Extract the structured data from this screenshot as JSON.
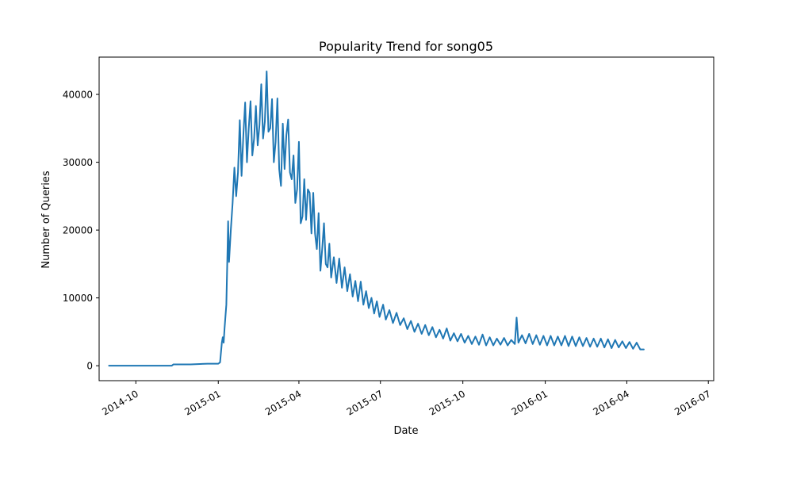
{
  "chart_data": {
    "type": "line",
    "title": "Popularity Trend for song05",
    "xlabel": "Date",
    "ylabel": "Number of Queries",
    "xlim": [
      "2014-08-21",
      "2016-07-07"
    ],
    "ylim": [
      -2200,
      45500
    ],
    "x_ticks": [
      "2014-10",
      "2015-01",
      "2015-04",
      "2015-07",
      "2015-10",
      "2016-01",
      "2016-04",
      "2016-07"
    ],
    "x_tick_dates": [
      "2014-10-01",
      "2015-01-01",
      "2015-04-01",
      "2015-07-01",
      "2015-10-01",
      "2016-01-01",
      "2016-04-01",
      "2016-07-01"
    ],
    "y_ticks": [
      0,
      10000,
      20000,
      30000,
      40000
    ],
    "grid": false,
    "series": [
      {
        "color": "#1f77b4",
        "points": [
          [
            "2014-09-01",
            0
          ],
          [
            "2014-10-01",
            0
          ],
          [
            "2014-11-10",
            0
          ],
          [
            "2014-11-12",
            200
          ],
          [
            "2014-12-01",
            200
          ],
          [
            "2014-12-20",
            300
          ],
          [
            "2015-01-01",
            300
          ],
          [
            "2015-01-03",
            500
          ],
          [
            "2015-01-05",
            3400
          ],
          [
            "2015-01-06",
            4200
          ],
          [
            "2015-01-07",
            3400
          ],
          [
            "2015-01-08",
            5500
          ],
          [
            "2015-01-10",
            9000
          ],
          [
            "2015-01-11",
            15000
          ],
          [
            "2015-01-12",
            21300
          ],
          [
            "2015-01-13",
            15300
          ],
          [
            "2015-01-15",
            20000
          ],
          [
            "2015-01-17",
            24000
          ],
          [
            "2015-01-19",
            29200
          ],
          [
            "2015-01-21",
            25000
          ],
          [
            "2015-01-23",
            28500
          ],
          [
            "2015-01-25",
            36200
          ],
          [
            "2015-01-27",
            28000
          ],
          [
            "2015-01-29",
            34000
          ],
          [
            "2015-01-31",
            38800
          ],
          [
            "2015-02-02",
            30000
          ],
          [
            "2015-02-04",
            35000
          ],
          [
            "2015-02-06",
            39000
          ],
          [
            "2015-02-08",
            31000
          ],
          [
            "2015-02-10",
            33500
          ],
          [
            "2015-02-12",
            38300
          ],
          [
            "2015-02-14",
            32500
          ],
          [
            "2015-02-16",
            35500
          ],
          [
            "2015-02-18",
            41500
          ],
          [
            "2015-02-20",
            33500
          ],
          [
            "2015-02-22",
            36000
          ],
          [
            "2015-02-24",
            43400
          ],
          [
            "2015-02-26",
            34500
          ],
          [
            "2015-02-28",
            35000
          ],
          [
            "2015-03-02",
            39300
          ],
          [
            "2015-03-04",
            30000
          ],
          [
            "2015-03-06",
            33000
          ],
          [
            "2015-03-08",
            39400
          ],
          [
            "2015-03-10",
            29000
          ],
          [
            "2015-03-12",
            26500
          ],
          [
            "2015-03-14",
            35700
          ],
          [
            "2015-03-16",
            29000
          ],
          [
            "2015-03-18",
            34000
          ],
          [
            "2015-03-20",
            36300
          ],
          [
            "2015-03-22",
            28500
          ],
          [
            "2015-03-24",
            27500
          ],
          [
            "2015-03-26",
            31000
          ],
          [
            "2015-03-28",
            24000
          ],
          [
            "2015-03-30",
            26000
          ],
          [
            "2015-04-01",
            33000
          ],
          [
            "2015-04-03",
            21000
          ],
          [
            "2015-04-05",
            22000
          ],
          [
            "2015-04-07",
            27500
          ],
          [
            "2015-04-09",
            21500
          ],
          [
            "2015-04-11",
            26000
          ],
          [
            "2015-04-13",
            25500
          ],
          [
            "2015-04-15",
            19500
          ],
          [
            "2015-04-17",
            25500
          ],
          [
            "2015-04-19",
            19500
          ],
          [
            "2015-04-21",
            17200
          ],
          [
            "2015-04-23",
            22500
          ],
          [
            "2015-04-25",
            14000
          ],
          [
            "2015-04-27",
            17200
          ],
          [
            "2015-04-29",
            21000
          ],
          [
            "2015-05-01",
            15000
          ],
          [
            "2015-05-03",
            14500
          ],
          [
            "2015-05-05",
            18000
          ],
          [
            "2015-05-07",
            13000
          ],
          [
            "2015-05-10",
            16000
          ],
          [
            "2015-05-13",
            12200
          ],
          [
            "2015-05-16",
            15800
          ],
          [
            "2015-05-19",
            11500
          ],
          [
            "2015-05-22",
            14500
          ],
          [
            "2015-05-25",
            11000
          ],
          [
            "2015-05-28",
            13500
          ],
          [
            "2015-05-31",
            10200
          ],
          [
            "2015-06-03",
            12500
          ],
          [
            "2015-06-06",
            9500
          ],
          [
            "2015-06-09",
            12400
          ],
          [
            "2015-06-12",
            9000
          ],
          [
            "2015-06-15",
            11000
          ],
          [
            "2015-06-18",
            8500
          ],
          [
            "2015-06-21",
            10000
          ],
          [
            "2015-06-24",
            7700
          ],
          [
            "2015-06-27",
            9500
          ],
          [
            "2015-06-30",
            7200
          ],
          [
            "2015-07-04",
            9000
          ],
          [
            "2015-07-07",
            6800
          ],
          [
            "2015-07-11",
            8200
          ],
          [
            "2015-07-15",
            6300
          ],
          [
            "2015-07-19",
            7800
          ],
          [
            "2015-07-23",
            6000
          ],
          [
            "2015-07-27",
            7000
          ],
          [
            "2015-07-31",
            5400
          ],
          [
            "2015-08-04",
            6600
          ],
          [
            "2015-08-08",
            5000
          ],
          [
            "2015-08-12",
            6200
          ],
          [
            "2015-08-16",
            4700
          ],
          [
            "2015-08-20",
            6000
          ],
          [
            "2015-08-24",
            4500
          ],
          [
            "2015-08-28",
            5700
          ],
          [
            "2015-09-01",
            4200
          ],
          [
            "2015-09-05",
            5300
          ],
          [
            "2015-09-09",
            4000
          ],
          [
            "2015-09-13",
            5500
          ],
          [
            "2015-09-17",
            3700
          ],
          [
            "2015-09-21",
            4800
          ],
          [
            "2015-09-25",
            3600
          ],
          [
            "2015-09-29",
            4700
          ],
          [
            "2015-10-03",
            3400
          ],
          [
            "2015-10-07",
            4400
          ],
          [
            "2015-10-11",
            3200
          ],
          [
            "2015-10-15",
            4300
          ],
          [
            "2015-10-19",
            3100
          ],
          [
            "2015-10-23",
            4600
          ],
          [
            "2015-10-27",
            3000
          ],
          [
            "2015-10-31",
            4200
          ],
          [
            "2015-11-04",
            3000
          ],
          [
            "2015-11-08",
            4000
          ],
          [
            "2015-11-12",
            3100
          ],
          [
            "2015-11-16",
            4100
          ],
          [
            "2015-11-20",
            3000
          ],
          [
            "2015-11-24",
            3800
          ],
          [
            "2015-11-28",
            3200
          ],
          [
            "2015-11-30",
            7100
          ],
          [
            "2015-12-02",
            3400
          ],
          [
            "2015-12-06",
            4500
          ],
          [
            "2015-12-10",
            3300
          ],
          [
            "2015-12-14",
            4700
          ],
          [
            "2015-12-18",
            3200
          ],
          [
            "2015-12-22",
            4500
          ],
          [
            "2015-12-26",
            3100
          ],
          [
            "2015-12-30",
            4400
          ],
          [
            "2016-01-03",
            3000
          ],
          [
            "2016-01-07",
            4400
          ],
          [
            "2016-01-11",
            3000
          ],
          [
            "2016-01-15",
            4300
          ],
          [
            "2016-01-19",
            3000
          ],
          [
            "2016-01-23",
            4400
          ],
          [
            "2016-01-27",
            2900
          ],
          [
            "2016-01-31",
            4300
          ],
          [
            "2016-02-04",
            2900
          ],
          [
            "2016-02-08",
            4200
          ],
          [
            "2016-02-12",
            2900
          ],
          [
            "2016-02-16",
            4100
          ],
          [
            "2016-02-20",
            2800
          ],
          [
            "2016-02-24",
            4000
          ],
          [
            "2016-02-28",
            2800
          ],
          [
            "2016-03-03",
            4000
          ],
          [
            "2016-03-07",
            2700
          ],
          [
            "2016-03-11",
            3900
          ],
          [
            "2016-03-15",
            2600
          ],
          [
            "2016-03-19",
            3800
          ],
          [
            "2016-03-23",
            2700
          ],
          [
            "2016-03-27",
            3600
          ],
          [
            "2016-03-31",
            2600
          ],
          [
            "2016-04-04",
            3500
          ],
          [
            "2016-04-08",
            2500
          ],
          [
            "2016-04-12",
            3400
          ],
          [
            "2016-04-16",
            2400
          ],
          [
            "2016-04-20",
            2400
          ]
        ]
      }
    ]
  }
}
